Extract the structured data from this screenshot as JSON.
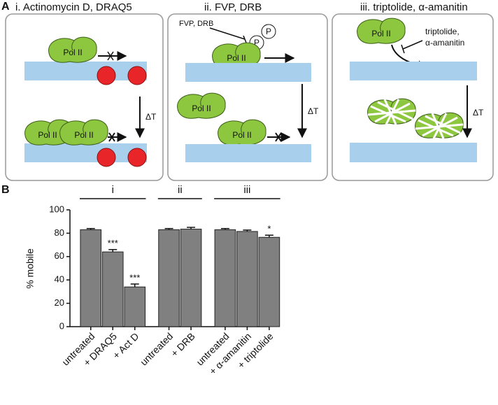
{
  "panel_a": {
    "label": "A",
    "panels": [
      {
        "title": "i. Actinomycin D, DRAQ5",
        "labels": [
          "Pol II",
          "Pol II",
          "Pol II"
        ],
        "delta": "ΔT"
      },
      {
        "title": "ii. FVP, DRB",
        "inhibitor": "FVP, DRB",
        "phospho": [
          "P",
          "P"
        ],
        "labels": [
          "Pol II",
          "Pol II",
          "Pol II"
        ],
        "delta": "ΔT"
      },
      {
        "title": "iii. triptolide,  α-amanitin",
        "inhibitor": [
          "triptolide,",
          "α-amanitin"
        ],
        "labels": [
          "Pol II"
        ],
        "delta": "ΔT"
      }
    ]
  },
  "chart_data": {
    "panel_label": "B",
    "type": "bar",
    "ylabel": "% mobile",
    "categories": [
      "untreated",
      "+ DRAQ5",
      "+ Act D",
      null,
      "untreated",
      "+ DRB",
      null,
      "untreated",
      "+ α-amanitin",
      "+ triptolide"
    ],
    "values": [
      83,
      64,
      34,
      null,
      83,
      83.5,
      null,
      83,
      81.5,
      76.5
    ],
    "errors": [
      1,
      2,
      2.5,
      null,
      1,
      1.5,
      null,
      1,
      1.2,
      1.8
    ],
    "annotations": [
      null,
      "***",
      "***",
      null,
      null,
      null,
      null,
      null,
      null,
      "*"
    ],
    "groups": [
      "i",
      "ii",
      "iii"
    ],
    "ylim": [
      0,
      100
    ],
    "yticks": [
      0,
      20,
      40,
      60,
      80,
      100
    ],
    "color": "#808080"
  }
}
